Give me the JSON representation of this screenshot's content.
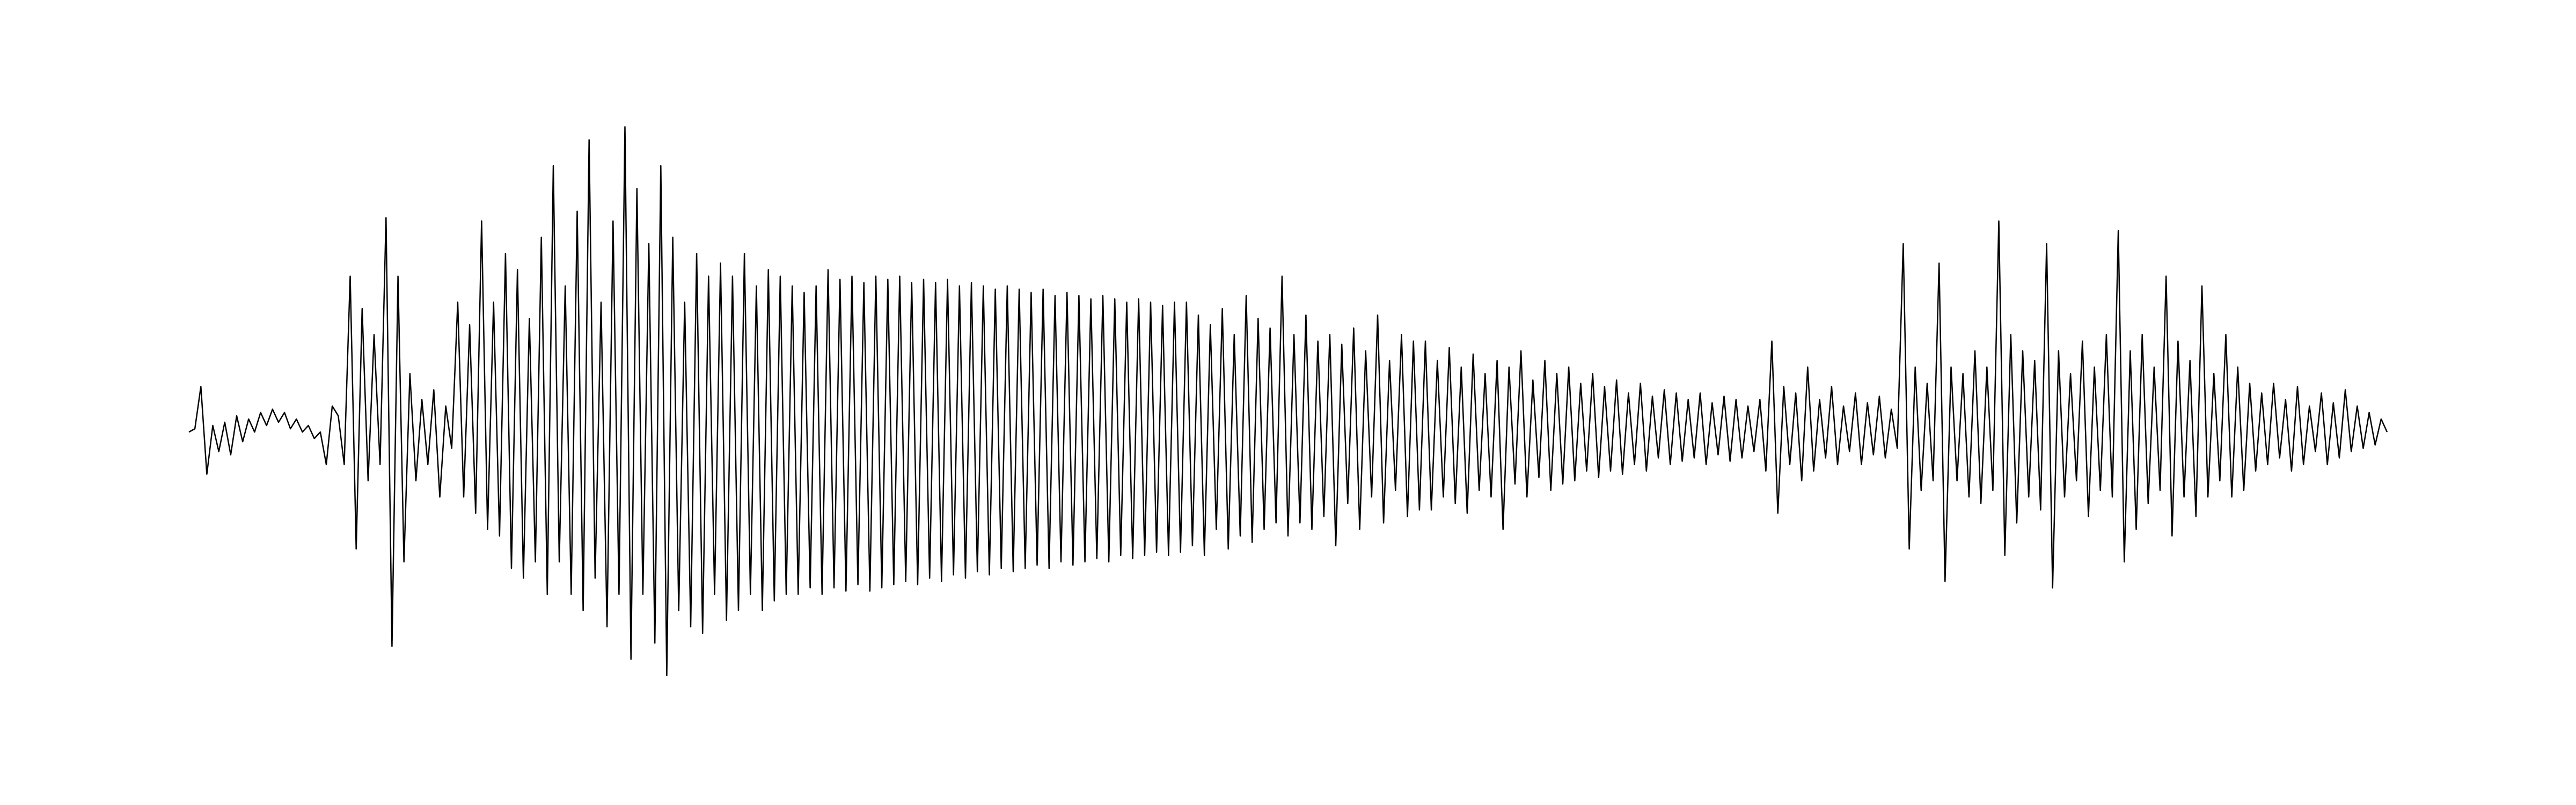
{
  "chart_data": {
    "type": "line",
    "color": "#000000",
    "ylim": [
      -1,
      1
    ],
    "values": [
      0.0,
      0.01,
      0.14,
      -0.13,
      0.02,
      -0.06,
      0.03,
      -0.07,
      0.05,
      -0.03,
      0.04,
      0.0,
      0.06,
      0.02,
      0.07,
      0.03,
      0.06,
      0.01,
      0.04,
      0.0,
      0.02,
      -0.02,
      0.0,
      -0.1,
      0.08,
      0.05,
      -0.1,
      0.48,
      -0.36,
      0.38,
      -0.15,
      0.3,
      -0.1,
      0.66,
      -0.66,
      0.48,
      -0.4,
      0.18,
      -0.15,
      0.1,
      -0.1,
      0.13,
      -0.2,
      0.08,
      -0.05,
      0.4,
      -0.2,
      0.33,
      -0.25,
      0.65,
      -0.3,
      0.4,
      -0.32,
      0.55,
      -0.42,
      0.5,
      -0.45,
      0.35,
      -0.4,
      0.6,
      -0.5,
      0.82,
      -0.4,
      0.45,
      -0.5,
      0.68,
      -0.55,
      0.9,
      -0.45,
      0.4,
      -0.6,
      0.65,
      -0.5,
      0.94,
      -0.7,
      0.75,
      -0.5,
      0.58,
      -0.65,
      0.82,
      -0.75,
      0.6,
      -0.55,
      0.4,
      -0.6,
      0.55,
      -0.62,
      0.48,
      -0.5,
      0.52,
      -0.58,
      0.48,
      -0.55,
      0.55,
      -0.5,
      0.45,
      -0.55,
      0.5,
      -0.52,
      0.48,
      -0.5,
      0.45,
      -0.5,
      0.43,
      -0.48,
      0.45,
      -0.5,
      0.5,
      -0.48,
      0.47,
      -0.49,
      0.48,
      -0.47,
      0.46,
      -0.49,
      0.48,
      -0.48,
      0.47,
      -0.47,
      0.48,
      -0.46,
      0.46,
      -0.47,
      0.47,
      -0.45,
      0.46,
      -0.46,
      0.47,
      -0.44,
      0.45,
      -0.45,
      0.46,
      -0.43,
      0.45,
      -0.44,
      0.44,
      -0.42,
      0.45,
      -0.43,
      0.44,
      -0.42,
      0.43,
      -0.41,
      0.44,
      -0.42,
      0.42,
      -0.4,
      0.43,
      -0.41,
      0.42,
      -0.4,
      0.41,
      -0.39,
      0.42,
      -0.4,
      0.41,
      -0.38,
      0.4,
      -0.39,
      0.41,
      -0.38,
      0.4,
      -0.37,
      0.39,
      -0.38,
      0.4,
      -0.37,
      0.4,
      -0.35,
      0.36,
      -0.38,
      0.33,
      -0.3,
      0.38,
      -0.36,
      0.3,
      -0.32,
      0.42,
      -0.34,
      0.35,
      -0.3,
      0.32,
      -0.28,
      0.48,
      -0.32,
      0.3,
      -0.28,
      0.36,
      -0.3,
      0.28,
      -0.26,
      0.3,
      -0.35,
      0.27,
      -0.22,
      0.32,
      -0.3,
      0.25,
      -0.2,
      0.36,
      -0.28,
      0.22,
      -0.18,
      0.3,
      -0.26,
      0.28,
      -0.24,
      0.28,
      -0.24,
      0.22,
      -0.2,
      0.26,
      -0.22,
      0.2,
      -0.25,
      0.24,
      -0.18,
      0.18,
      -0.2,
      0.22,
      -0.3,
      0.2,
      -0.16,
      0.25,
      -0.2,
      0.16,
      -0.14,
      0.22,
      -0.18,
      0.18,
      -0.16,
      0.2,
      -0.15,
      0.15,
      -0.12,
      0.18,
      -0.14,
      0.14,
      -0.12,
      0.16,
      -0.13,
      0.12,
      -0.1,
      0.15,
      -0.12,
      0.11,
      -0.08,
      0.13,
      -0.1,
      0.12,
      -0.09,
      0.1,
      -0.08,
      0.12,
      -0.1,
      0.09,
      -0.07,
      0.11,
      -0.09,
      0.1,
      -0.08,
      0.08,
      -0.06,
      0.1,
      -0.12,
      0.28,
      -0.25,
      0.14,
      -0.1,
      0.12,
      -0.15,
      0.2,
      -0.12,
      0.1,
      -0.08,
      0.14,
      -0.1,
      0.08,
      -0.06,
      0.12,
      -0.1,
      0.09,
      -0.07,
      0.11,
      -0.08,
      0.07,
      -0.05,
      0.58,
      -0.36,
      0.2,
      -0.18,
      0.15,
      -0.15,
      0.52,
      -0.46,
      0.2,
      -0.15,
      0.18,
      -0.2,
      0.25,
      -0.22,
      0.2,
      -0.18,
      0.65,
      -0.38,
      0.3,
      -0.28,
      0.25,
      -0.2,
      0.22,
      -0.24,
      0.58,
      -0.48,
      0.25,
      -0.2,
      0.18,
      -0.15,
      0.28,
      -0.26,
      0.2,
      -0.18,
      0.3,
      -0.2,
      0.62,
      -0.4,
      0.25,
      -0.3,
      0.3,
      -0.22,
      0.2,
      -0.18,
      0.48,
      -0.32,
      0.28,
      -0.2,
      0.22,
      -0.26,
      0.45,
      -0.2,
      0.18,
      -0.15,
      0.3,
      -0.2,
      0.2,
      -0.18,
      0.15,
      -0.12,
      0.12,
      -0.1,
      0.15,
      -0.08,
      0.1,
      -0.12,
      0.14,
      -0.1,
      0.08,
      -0.06,
      0.12,
      -0.1,
      0.09,
      -0.08,
      0.13,
      -0.06,
      0.08,
      -0.05,
      0.06,
      -0.04,
      0.04,
      0.0
    ]
  }
}
